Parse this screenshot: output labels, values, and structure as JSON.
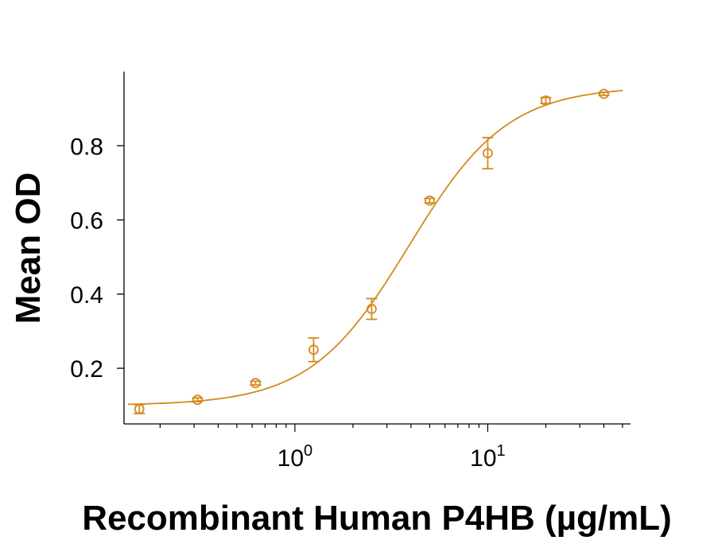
{
  "chart_data": {
    "type": "scatter",
    "title": "",
    "xlabel": "Recombinant Human P4HB (µg/mL)",
    "ylabel": "Mean OD",
    "x_scale": "log",
    "xlim": [
      0.13,
      55
    ],
    "ylim": [
      0.05,
      1.0
    ],
    "x_ticks": [
      1,
      10
    ],
    "x_tick_labels": [
      {
        "base": "10",
        "exp": "0"
      },
      {
        "base": "10",
        "exp": "1"
      }
    ],
    "y_ticks": [
      0.2,
      0.4,
      0.6,
      0.8
    ],
    "y_tick_labels": [
      "0.2",
      "0.4",
      "0.6",
      "0.8"
    ],
    "grid": false,
    "legend": "none",
    "color": "#D4891E",
    "series": [
      {
        "points": [
          {
            "x": 0.156,
            "y": 0.09,
            "err": 0.012
          },
          {
            "x": 0.3125,
            "y": 0.115,
            "err": 0.005
          },
          {
            "x": 0.625,
            "y": 0.16,
            "err": 0.005
          },
          {
            "x": 1.25,
            "y": 0.25,
            "err": 0.032
          },
          {
            "x": 2.5,
            "y": 0.36,
            "err": 0.028
          },
          {
            "x": 5,
            "y": 0.652,
            "err": 0.006
          },
          {
            "x": 10,
            "y": 0.78,
            "err": 0.042
          },
          {
            "x": 20,
            "y": 0.922,
            "err": 0.008
          },
          {
            "x": 40,
            "y": 0.94,
            "err": 0.004
          }
        ],
        "fit": {
          "model": "4PL",
          "bottom": 0.1,
          "top": 0.96,
          "ec50": 3.9,
          "hill": 1.7
        }
      }
    ]
  }
}
